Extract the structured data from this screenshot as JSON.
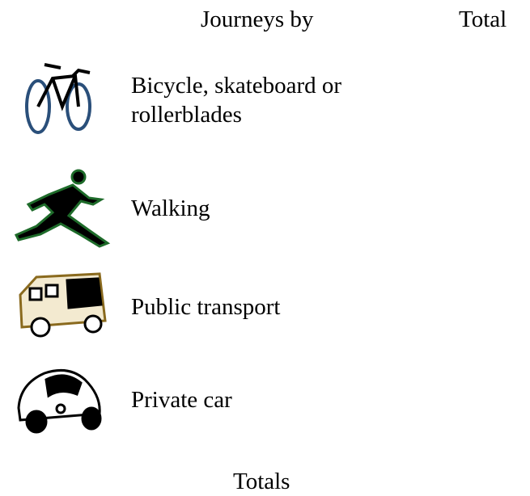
{
  "table": {
    "header": [
      "Journeys by",
      "Total"
    ],
    "rows": [
      [
        "Bicycle, skateboard or rollerblades"
      ],
      [
        "Walking"
      ],
      [
        "Public transport"
      ],
      [
        "Private car"
      ]
    ],
    "footer": [
      "Totals"
    ]
  }
}
